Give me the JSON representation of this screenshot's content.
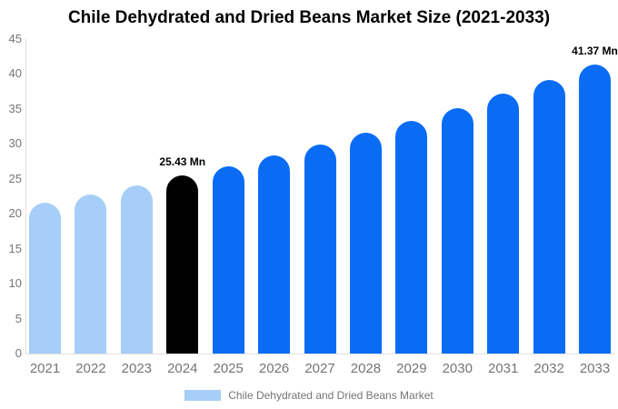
{
  "title": "Chile Dehydrated and Dried Beans Market Size (2021-2033)",
  "chart_data": {
    "type": "bar",
    "title": "Chile Dehydrated and Dried Beans Market Size (2021-2033)",
    "categories": [
      "2021",
      "2022",
      "2023",
      "2024",
      "2025",
      "2026",
      "2027",
      "2028",
      "2029",
      "2030",
      "2031",
      "2032",
      "2033"
    ],
    "values": [
      21.62,
      22.82,
      24.09,
      25.43,
      26.84,
      28.34,
      29.91,
      31.57,
      33.33,
      35.18,
      37.14,
      39.2,
      41.37
    ],
    "unit": "Mn",
    "point_colors": [
      "#a6cef8",
      "#a6cef8",
      "#a6cef8",
      "#000000",
      "#0a6cf5",
      "#0a6cf5",
      "#0a6cf5",
      "#0a6cf5",
      "#0a6cf5",
      "#0a6cf5",
      "#0a6cf5",
      "#0a6cf5",
      "#0a6cf5"
    ],
    "annotations": [
      {
        "category": "2024",
        "text": "25.43 Mn"
      },
      {
        "category": "2033",
        "text": "41.37 Mn"
      }
    ],
    "xlabel": "",
    "ylabel": "",
    "ylim": [
      0,
      45
    ],
    "ytick_step": 5,
    "ytick_labels": [
      "0",
      "5",
      "10",
      "15",
      "20",
      "25",
      "30",
      "35",
      "40",
      "45"
    ],
    "grid": false,
    "legend": {
      "label": "Chile Dehydrated and Dried Beans Market",
      "swatch_color": "#a6cef8",
      "position": "bottom"
    }
  },
  "colors": {
    "forecast_bar": "#0a6cf5",
    "historical_bar": "#a6cef8",
    "base_year_bar": "#000000",
    "axis_line": "#e0e0e0",
    "tick_text": "#757575",
    "title_text": "#000000",
    "annotation_text": "#000000",
    "background": "#ffffff"
  }
}
